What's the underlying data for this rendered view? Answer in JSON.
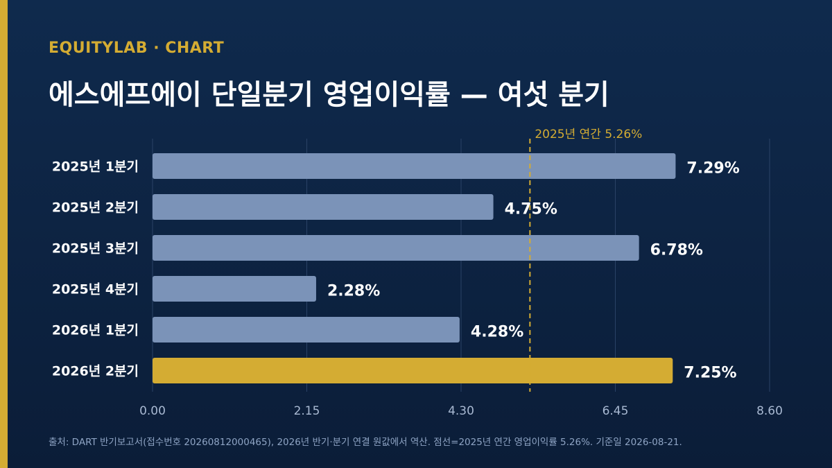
{
  "header": {
    "eyebrow": "EQUITYLAB · CHART",
    "title": "에스에프에이 단일분기 영업이익률 — 여섯 분기"
  },
  "chart_data": {
    "type": "bar",
    "orientation": "horizontal",
    "categories": [
      "2025년 1분기",
      "2025년 2분기",
      "2025년 3분기",
      "2025년 4분기",
      "2026년 1분기",
      "2026년 2분기"
    ],
    "values": [
      7.29,
      4.75,
      6.78,
      2.28,
      4.28,
      7.25
    ],
    "value_labels": [
      "7.29%",
      "4.75%",
      "6.78%",
      "2.28%",
      "4.28%",
      "7.25%"
    ],
    "highlight_index": 5,
    "xlim": [
      0,
      8.6
    ],
    "x_ticks": [
      "0.00",
      "2.15",
      "4.30",
      "6.45",
      "8.60"
    ],
    "reference_line": {
      "value": 5.26,
      "label": "2025년 연간 5.26%"
    },
    "grid": true,
    "colors": {
      "bar": "#7b93b8",
      "highlight": "#d4ac33",
      "reference": "#d4ac33",
      "grid": "#2a4266",
      "text": "#ffffff",
      "tick": "#a9b9d2"
    }
  },
  "footer": {
    "source": "출처: DART 반기보고서(접수번호 20260812000465), 2026년 반기·분기 연결 원값에서 역산. 점선=2025년 연간 영업이익률 5.26%. 기준일 2026-08-21."
  }
}
